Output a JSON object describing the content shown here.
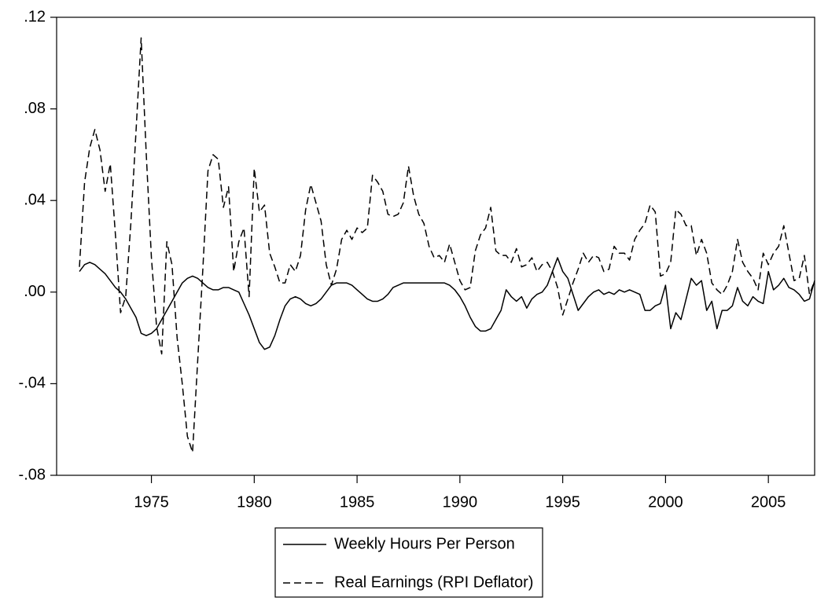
{
  "chart_data": {
    "type": "line",
    "x": [
      1971.5,
      1971.75,
      1972,
      1972.25,
      1972.5,
      1972.75,
      1973,
      1973.25,
      1973.5,
      1973.75,
      1974,
      1974.25,
      1974.5,
      1974.75,
      1975,
      1975.25,
      1975.5,
      1975.75,
      1976,
      1976.25,
      1976.5,
      1976.75,
      1977,
      1977.25,
      1977.5,
      1977.75,
      1978,
      1978.25,
      1978.5,
      1978.75,
      1979,
      1979.25,
      1979.5,
      1979.75,
      1980,
      1980.25,
      1980.5,
      1980.75,
      1981,
      1981.25,
      1981.5,
      1981.75,
      1982,
      1982.25,
      1982.5,
      1982.75,
      1983,
      1983.25,
      1983.5,
      1983.75,
      1984,
      1984.25,
      1984.5,
      1984.75,
      1985,
      1985.25,
      1985.5,
      1985.75,
      1986,
      1986.25,
      1986.5,
      1986.75,
      1987,
      1987.25,
      1987.5,
      1987.75,
      1988,
      1988.25,
      1988.5,
      1988.75,
      1989,
      1989.25,
      1989.5,
      1989.75,
      1990,
      1990.25,
      1990.5,
      1990.75,
      1991,
      1991.25,
      1991.5,
      1991.75,
      1992,
      1992.25,
      1992.5,
      1992.75,
      1993,
      1993.25,
      1993.5,
      1993.75,
      1994,
      1994.25,
      1994.5,
      1994.75,
      1995,
      1995.25,
      1995.5,
      1995.75,
      1996,
      1996.25,
      1996.5,
      1996.75,
      1997,
      1997.25,
      1997.5,
      1997.75,
      1998,
      1998.25,
      1998.5,
      1998.75,
      1999,
      1999.25,
      1999.5,
      1999.75,
      2000,
      2000.25,
      2000.5,
      2000.75,
      2001,
      2001.25,
      2001.5,
      2001.75,
      2002,
      2002.25,
      2002.5,
      2002.75,
      2003,
      2003.25,
      2003.5,
      2003.75,
      2004,
      2004.25,
      2004.5,
      2004.75,
      2005,
      2005.25,
      2005.5,
      2005.75,
      2006,
      2006.25,
      2006.5,
      2006.75,
      2007,
      2007.25
    ],
    "series": [
      {
        "name": "Weekly Hours Per Person",
        "color": "#000000",
        "linestyle": "solid",
        "values": [
          0.009,
          0.012,
          0.013,
          0.012,
          0.01,
          0.008,
          0.005,
          0.002,
          0.0,
          -0.003,
          -0.007,
          -0.011,
          -0.018,
          -0.019,
          -0.018,
          -0.016,
          -0.012,
          -0.008,
          -0.004,
          0.0,
          0.004,
          0.006,
          0.007,
          0.006,
          0.004,
          0.002,
          0.001,
          0.001,
          0.002,
          0.002,
          0.001,
          0.0,
          -0.005,
          -0.01,
          -0.016,
          -0.022,
          -0.025,
          -0.024,
          -0.019,
          -0.012,
          -0.006,
          -0.003,
          -0.002,
          -0.003,
          -0.005,
          -0.006,
          -0.005,
          -0.003,
          0.0,
          0.003,
          0.004,
          0.004,
          0.004,
          0.003,
          0.001,
          -0.001,
          -0.003,
          -0.004,
          -0.004,
          -0.003,
          -0.001,
          0.002,
          0.003,
          0.004,
          0.004,
          0.004,
          0.004,
          0.004,
          0.004,
          0.004,
          0.004,
          0.004,
          0.003,
          0.001,
          -0.002,
          -0.006,
          -0.011,
          -0.015,
          -0.017,
          -0.017,
          -0.016,
          -0.012,
          -0.008,
          0.001,
          -0.002,
          -0.004,
          -0.002,
          -0.007,
          -0.003,
          -0.001,
          0.0,
          0.003,
          0.009,
          0.015,
          0.009,
          0.006,
          -0.001,
          -0.008,
          -0.005,
          -0.002,
          0.0,
          0.001,
          -0.001,
          0.0,
          -0.001,
          0.001,
          0.0,
          0.001,
          0.0,
          -0.001,
          -0.008,
          -0.008,
          -0.006,
          -0.005,
          0.003,
          -0.016,
          -0.009,
          -0.012,
          -0.003,
          0.006,
          0.003,
          0.005,
          -0.008,
          -0.004,
          -0.016,
          -0.008,
          -0.008,
          -0.006,
          0.002,
          -0.004,
          -0.006,
          -0.002,
          -0.004,
          -0.005,
          0.009,
          0.001,
          0.003,
          0.006,
          0.002,
          0.001,
          -0.001,
          -0.004,
          -0.003,
          0.005
        ]
      },
      {
        "name": "Real Earnings (RPI Deflator)",
        "color": "#000000",
        "linestyle": "dashed",
        "values": [
          0.011,
          0.048,
          0.063,
          0.071,
          0.062,
          0.044,
          0.056,
          0.025,
          -0.009,
          -0.002,
          0.03,
          0.07,
          0.111,
          0.06,
          0.015,
          -0.015,
          -0.027,
          0.022,
          0.012,
          -0.02,
          -0.04,
          -0.063,
          -0.07,
          -0.03,
          0.01,
          0.053,
          0.06,
          0.058,
          0.037,
          0.046,
          0.009,
          0.022,
          0.028,
          -0.002,
          0.054,
          0.035,
          0.038,
          0.017,
          0.011,
          0.004,
          0.004,
          0.012,
          0.009,
          0.016,
          0.036,
          0.047,
          0.039,
          0.031,
          0.012,
          0.003,
          0.01,
          0.023,
          0.027,
          0.023,
          0.028,
          0.026,
          0.028,
          0.051,
          0.048,
          0.044,
          0.034,
          0.033,
          0.034,
          0.039,
          0.055,
          0.042,
          0.034,
          0.03,
          0.02,
          0.015,
          0.016,
          0.013,
          0.021,
          0.013,
          0.005,
          0.001,
          0.002,
          0.018,
          0.025,
          0.028,
          0.037,
          0.018,
          0.016,
          0.016,
          0.013,
          0.019,
          0.011,
          0.012,
          0.015,
          0.009,
          0.012,
          0.013,
          0.009,
          0.002,
          -0.01,
          -0.003,
          0.004,
          0.01,
          0.017,
          0.013,
          0.016,
          0.015,
          0.009,
          0.01,
          0.02,
          0.017,
          0.017,
          0.014,
          0.023,
          0.027,
          0.03,
          0.038,
          0.035,
          0.007,
          0.008,
          0.013,
          0.036,
          0.034,
          0.029,
          0.029,
          0.016,
          0.023,
          0.017,
          0.004,
          0.001,
          -0.001,
          0.003,
          0.009,
          0.023,
          0.013,
          0.009,
          0.006,
          0.001,
          0.017,
          0.012,
          0.017,
          0.02,
          0.029,
          0.017,
          0.005,
          0.006,
          0.016,
          -0.001,
          0.005
        ]
      }
    ],
    "xlim": [
      1970.39,
      2007.25
    ],
    "xticks": [
      1975,
      1980,
      1985,
      1990,
      1995,
      2000,
      2005
    ],
    "ylim": [
      -0.08,
      0.12
    ],
    "yticks": [
      {
        "value": -0.08,
        "label": "-.08"
      },
      {
        "value": -0.04,
        "label": "-.04"
      },
      {
        "value": 0,
        "label": ".00"
      },
      {
        "value": 0.04,
        "label": ".04"
      },
      {
        "value": 0.08,
        "label": ".08"
      },
      {
        "value": 0.12,
        "label": ".12"
      }
    ],
    "grid": false,
    "legend": "bottom"
  }
}
